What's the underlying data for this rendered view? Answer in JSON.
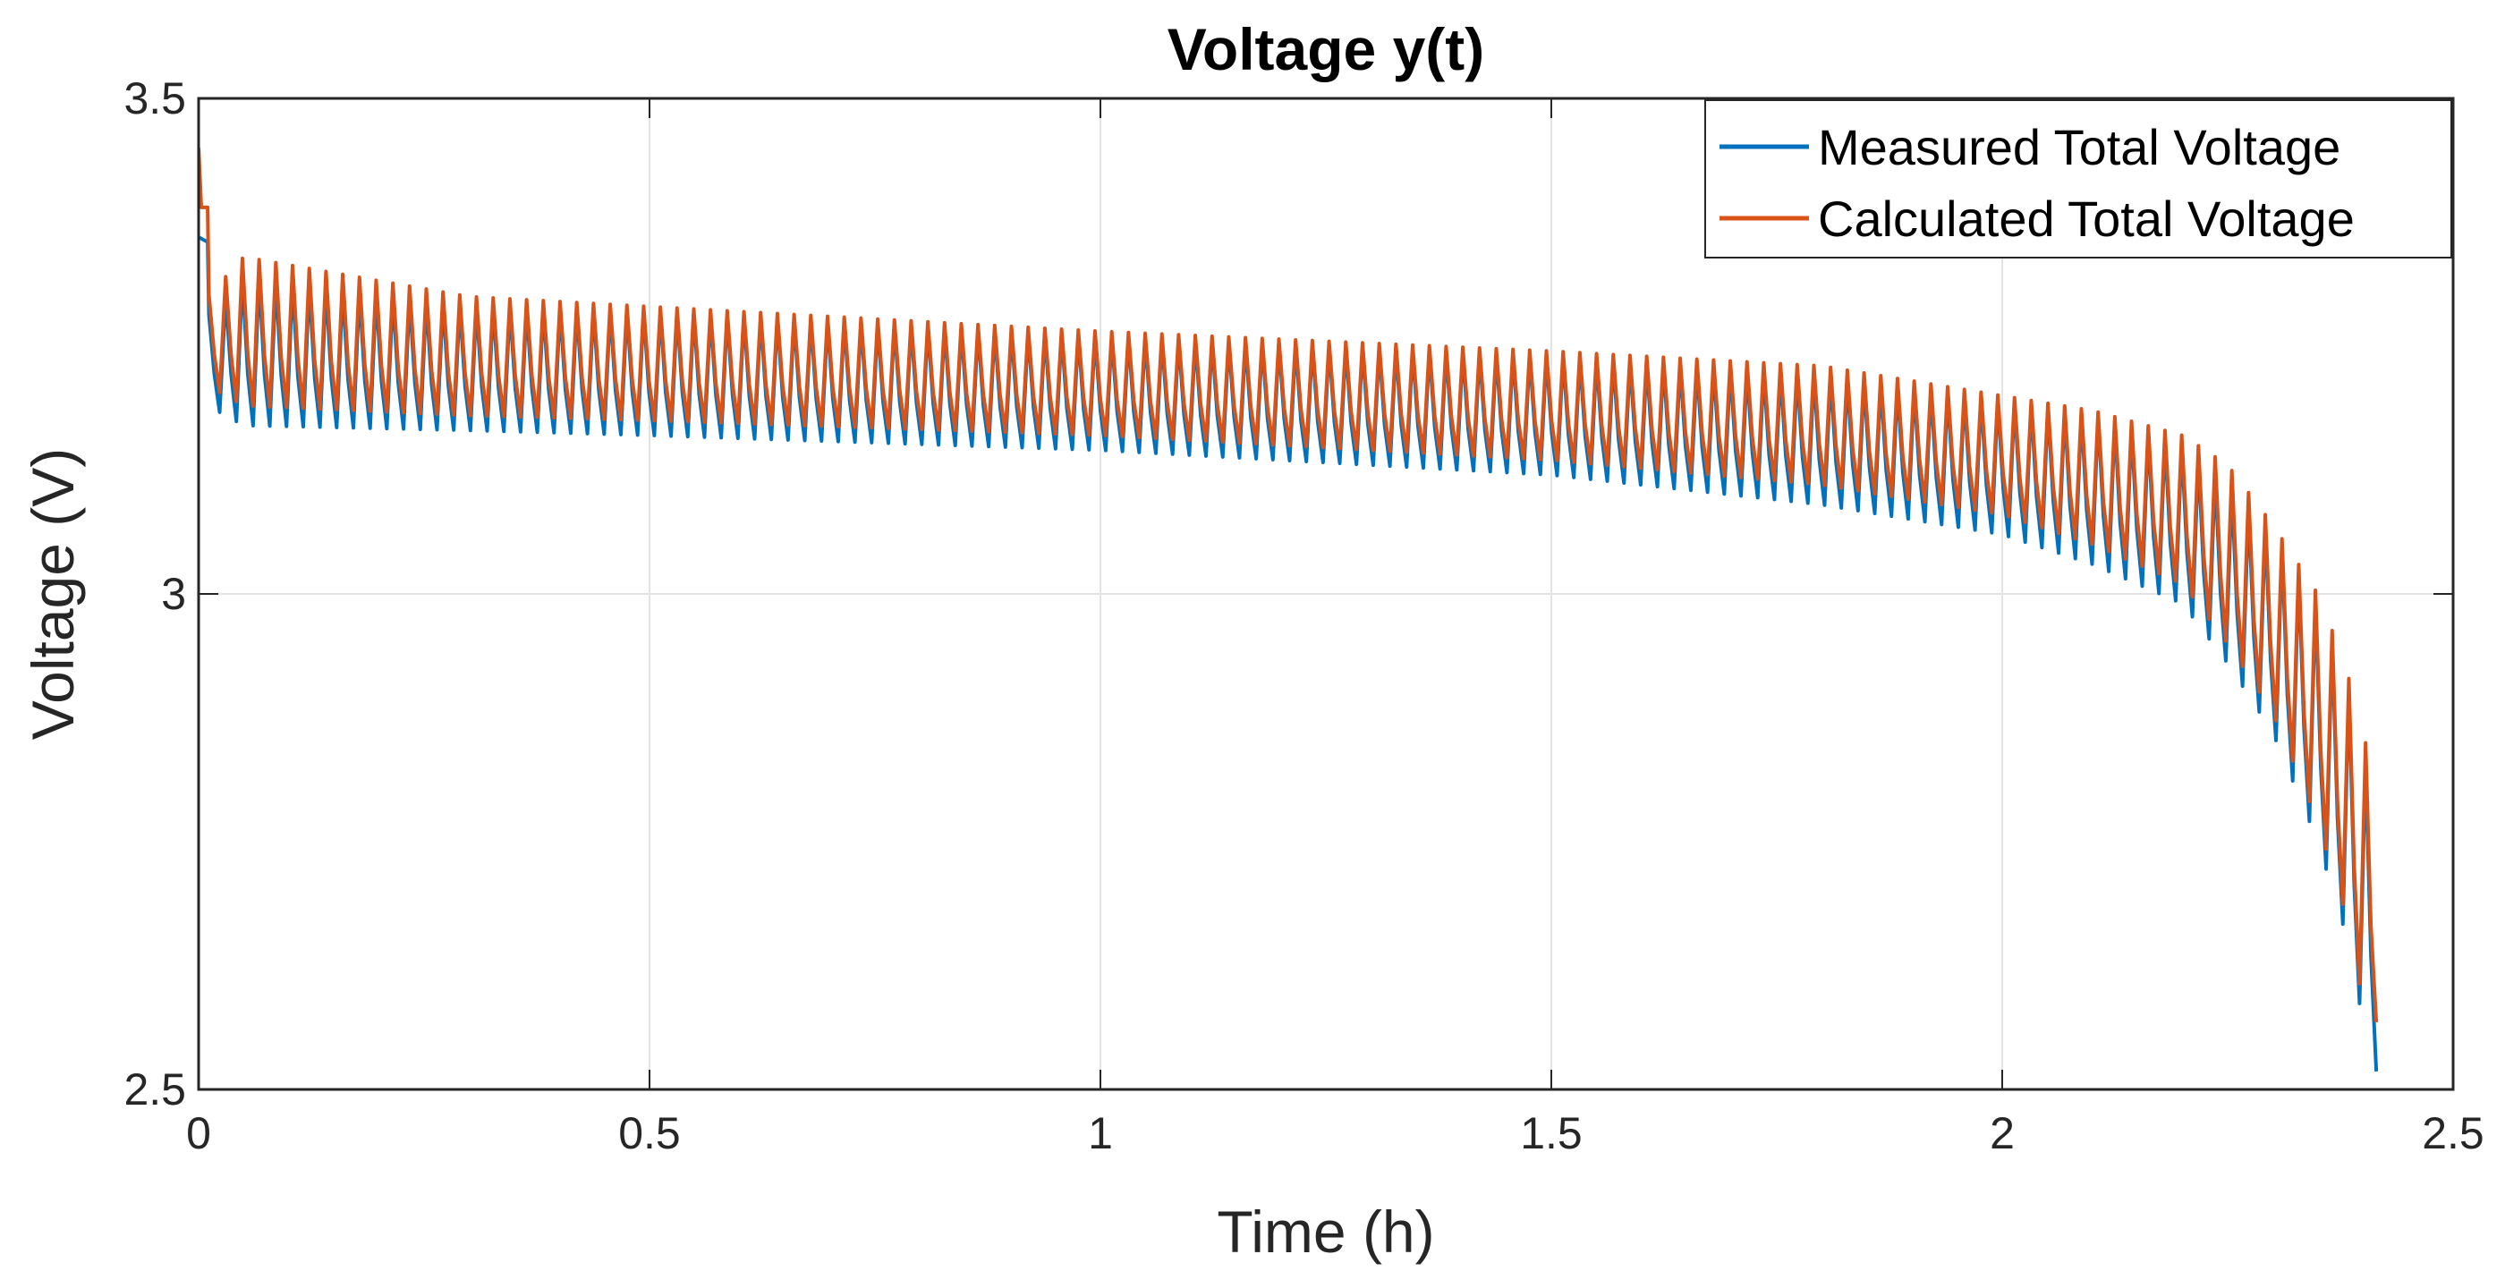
{
  "chart_data": {
    "type": "line",
    "title": "Voltage y(t)",
    "xlabel": "Time (h)",
    "ylabel": "Voltage (V)",
    "xlim": [
      0,
      2.5
    ],
    "ylim": [
      2.5,
      3.5
    ],
    "xticks": [
      0,
      0.5,
      1,
      1.5,
      2,
      2.5
    ],
    "xtick_labels": [
      "0",
      "0.5",
      "1",
      "1.5",
      "2",
      "2.5"
    ],
    "yticks": [
      2.5,
      3,
      3.5
    ],
    "ytick_labels": [
      "2.5",
      "3",
      "3.5"
    ],
    "grid": true,
    "legend_position": "top-right",
    "pulse_count": 130,
    "pulse_end_time": 2.42,
    "series": [
      {
        "name": "Measured Total Voltage",
        "color": "#0072BD",
        "start_points": [
          [
            0.0,
            3.36
          ],
          [
            0.01,
            3.355
          ]
        ],
        "envelope_time": [
          0.01,
          0.05,
          0.3,
          0.5,
          1.0,
          1.5,
          1.8,
          2.0,
          2.1,
          2.2,
          2.25,
          2.3,
          2.35,
          2.38,
          2.4,
          2.42
        ],
        "envelope_high": [
          3.28,
          3.32,
          3.29,
          3.285,
          3.26,
          3.24,
          3.22,
          3.195,
          3.18,
          3.15,
          3.11,
          3.06,
          2.99,
          2.92,
          2.84,
          2.78
        ],
        "envelope_low": [
          3.19,
          3.17,
          3.165,
          3.16,
          3.145,
          3.12,
          3.09,
          3.06,
          3.03,
          2.99,
          2.93,
          2.86,
          2.75,
          2.66,
          2.57,
          2.5
        ]
      },
      {
        "name": "Calculated Total Voltage",
        "color": "#D95319",
        "start_points": [
          [
            0.0,
            3.45
          ],
          [
            0.003,
            3.39
          ],
          [
            0.01,
            3.39
          ]
        ],
        "envelope_time": [
          0.01,
          0.05,
          0.3,
          0.5,
          1.0,
          1.5,
          1.8,
          2.0,
          2.1,
          2.2,
          2.25,
          2.3,
          2.35,
          2.38,
          2.4,
          2.42
        ],
        "envelope_high": [
          3.3,
          3.34,
          3.3,
          3.29,
          3.265,
          3.245,
          3.23,
          3.2,
          3.185,
          3.16,
          3.13,
          3.07,
          3.0,
          2.93,
          2.86,
          2.79
        ],
        "envelope_low": [
          3.21,
          3.19,
          3.18,
          3.175,
          3.16,
          3.135,
          3.11,
          3.08,
          3.05,
          3.01,
          2.95,
          2.88,
          2.77,
          2.68,
          2.59,
          2.56
        ]
      }
    ]
  }
}
